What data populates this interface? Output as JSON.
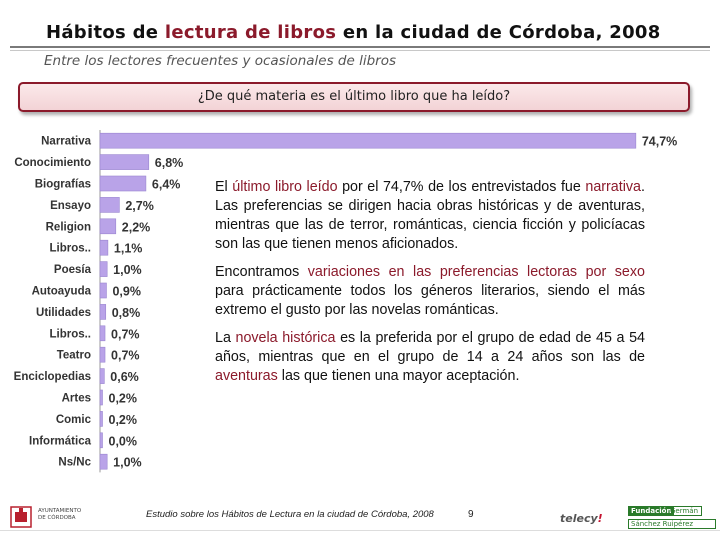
{
  "header": {
    "title_parts": {
      "a": "Hábitos de ",
      "b": "lectura de libros",
      "c": " en la ciudad de Córdoba, 2008"
    },
    "subtitle": "Entre los lectores frecuentes y ocasionales de libros",
    "question": "¿De qué materia es el último libro que ha leído?"
  },
  "chart_data": {
    "type": "bar",
    "orientation": "horizontal",
    "title": "¿De qué materia es el último libro que ha leído?",
    "xlabel": "",
    "ylabel": "",
    "xlim": [
      0,
      75
    ],
    "categories": [
      "Narrativa",
      "Conocimiento",
      "Biografías",
      "Ensayo",
      "Religion",
      "Libros..",
      "Poesía",
      "Autoayuda",
      "Utilidades",
      "Libros..",
      "Teatro",
      "Enciclopedias",
      "Artes",
      "Comic",
      "Informática",
      "Ns/Nc"
    ],
    "values": [
      74.7,
      6.8,
      6.4,
      2.7,
      2.2,
      1.1,
      1.0,
      0.9,
      0.8,
      0.7,
      0.7,
      0.6,
      0.2,
      0.2,
      0.0,
      1.0
    ],
    "labels": [
      "74,7%",
      "6,8%",
      "6,4%",
      "2,7%",
      "2,2%",
      "1,1%",
      "1,0%",
      "0,9%",
      "0,8%",
      "0,7%",
      "0,7%",
      "0,6%",
      "0,2%",
      "0,2%",
      "0,0%",
      "1,0%"
    ],
    "bar_color": "#b9a3e8",
    "bar_edge_color": "#9a86d0"
  },
  "notes": {
    "p1": {
      "a": "El ",
      "b": "último libro leído",
      "c": " por el 74,7% de los entrevistados fue ",
      "d": "narrativa",
      "e": ". Las preferencias se dirigen hacia obras históricas y de aventuras, mientras que las de terror, románticas, ciencia ficción y policíacas son las que tienen menos aficionados."
    },
    "p2": {
      "a": "Encontramos ",
      "b": "variaciones en las preferencias lectoras por sexo",
      "c": " para prácticamente todos los géneros literarios, siendo el más extremo el gusto por las novelas románticas."
    },
    "p3": {
      "a": "La ",
      "b": "novela histórica",
      "c": " es la preferida por el grupo de edad de 45 a 54 años, mientras que en el grupo de 14 a 24 años son las de ",
      "d": "aventuras",
      "e": " las que tienen una mayor aceptación."
    }
  },
  "footer": {
    "source": "Estudio sobre los Hábitos de Lectura en la ciudad de Córdoba, 2008",
    "page": "9",
    "logo_left_line1": "AYUNTAMIENTO",
    "logo_left_line2": "DE CÓRDOBA",
    "logo_mid_text": "telecy",
    "logo_mid_mark": "!",
    "logo_right_a": "Fundación",
    "logo_right_b": "Germán",
    "logo_right_c": "Sánchez Ruipérez"
  },
  "colors": {
    "accent": "#8b1a2b",
    "question_border": "#8b1a2b"
  }
}
